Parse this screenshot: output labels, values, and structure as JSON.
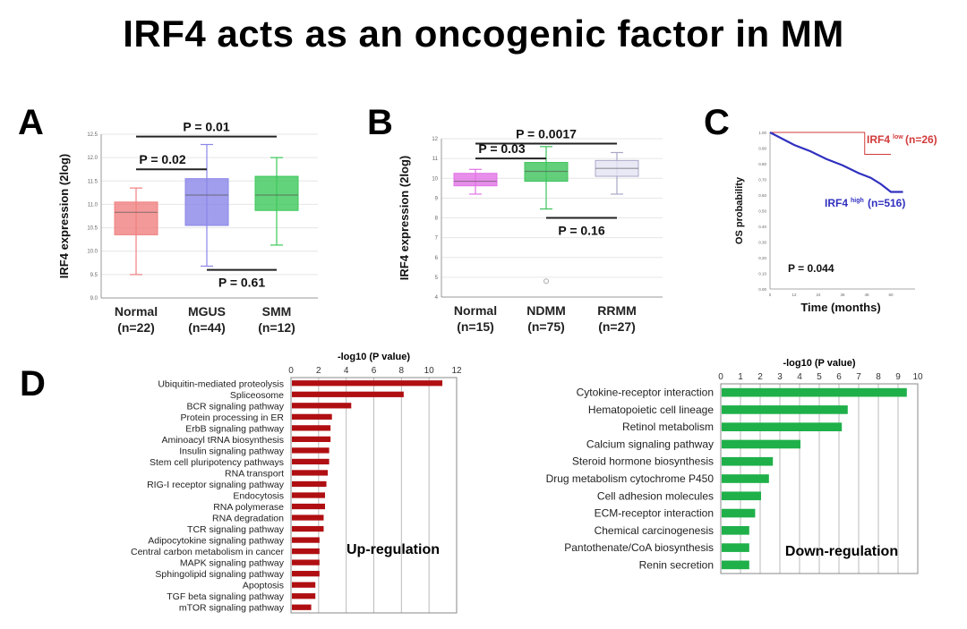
{
  "title": "IRF4 acts as an oncogenic factor in MM",
  "chart_data": [
    {
      "panel": "A",
      "type": "box",
      "ylabel": "IRF4 expression (2log)",
      "ylim": [
        9.0,
        12.5
      ],
      "yticks": [
        "9.0",
        "9.5",
        "10.0",
        "10.5",
        "11.0",
        "11.5",
        "12.0",
        "12.5"
      ],
      "categories": [
        "Normal",
        "MGUS",
        "SMM"
      ],
      "n_labels": [
        "(n=22)",
        "(n=44)",
        "(n=12)"
      ],
      "colors": [
        "#f08080",
        "#8a86e8",
        "#3cc85a"
      ],
      "stats": [
        {
          "min": 9.5,
          "q1": 10.35,
          "median": 10.83,
          "q3": 11.05,
          "max": 11.35
        },
        {
          "min": 9.68,
          "q1": 10.55,
          "median": 11.2,
          "q3": 11.55,
          "max": 12.28
        },
        {
          "min": 10.13,
          "q1": 10.87,
          "median": 11.2,
          "q3": 11.6,
          "max": 12.0
        }
      ],
      "comparisons": [
        {
          "from": 0,
          "to": 2,
          "y": 12.45,
          "label": "P = 0.01",
          "pos": "above"
        },
        {
          "from": 0,
          "to": 1,
          "y": 11.75,
          "label": "P = 0.02",
          "pos": "above"
        },
        {
          "from": 1,
          "to": 2,
          "y": 9.6,
          "label": "P = 0.61",
          "pos": "below"
        }
      ]
    },
    {
      "panel": "B",
      "type": "box",
      "ylabel": "IRF4 expression (2log)",
      "ylim": [
        4,
        12
      ],
      "yticks": [
        "4",
        "5",
        "6",
        "7",
        "8",
        "9",
        "10",
        "11",
        "12"
      ],
      "categories": [
        "Normal",
        "NDMM",
        "RRMM"
      ],
      "n_labels": [
        "(n=15)",
        "(n=75)",
        "(n=27)"
      ],
      "colors": [
        "#e272e6",
        "#3cc35a",
        "#e4e4f4"
      ],
      "stats": [
        {
          "min": 9.2,
          "q1": 9.62,
          "median": 9.85,
          "q3": 10.25,
          "max": 10.45
        },
        {
          "min": 8.45,
          "q1": 9.85,
          "median": 10.35,
          "q3": 10.8,
          "max": 11.6,
          "outliers": [
            4.8
          ]
        },
        {
          "min": 9.2,
          "q1": 10.1,
          "median": 10.5,
          "q3": 10.9,
          "max": 11.3
        }
      ],
      "comparisons": [
        {
          "from": 0,
          "to": 2,
          "y": 11.75,
          "label": "P = 0.0017",
          "pos": "above"
        },
        {
          "from": 0,
          "to": 1,
          "y": 11.0,
          "label": "P = 0.03",
          "pos": "above"
        },
        {
          "from": 1,
          "to": 2,
          "y": 8.0,
          "label": "P = 0.16",
          "pos": "below"
        }
      ]
    },
    {
      "panel": "C",
      "type": "line",
      "xlabel": "Time (months)",
      "ylabel": "OS probability",
      "ylim": [
        0,
        1
      ],
      "xlim": [
        0,
        72
      ],
      "yticks": [
        "0.00",
        "0.10",
        "0.20",
        "0.30",
        "0.40",
        "0.50",
        "0.60",
        "0.70",
        "0.80",
        "0.90",
        "1.00"
      ],
      "xticks": [
        "0",
        "12",
        "24",
        "36",
        "48",
        "60"
      ],
      "series": [
        {
          "name": "IRF4",
          "sup": "low",
          "n": "(n=26)",
          "color": "#d23a3a",
          "x": [
            0,
            47,
            47,
            60
          ],
          "y": [
            1.0,
            1.0,
            0.86,
            0.86
          ]
        },
        {
          "name": "IRF4",
          "sup": "high",
          "n": "(n=516)",
          "color": "#3030c0",
          "x": [
            0,
            6,
            12,
            20,
            28,
            36,
            44,
            50,
            55,
            58,
            60,
            66
          ],
          "y": [
            1.0,
            0.96,
            0.92,
            0.88,
            0.83,
            0.79,
            0.74,
            0.71,
            0.67,
            0.64,
            0.62,
            0.62
          ]
        }
      ],
      "annotation": "P = 0.044"
    },
    {
      "panel": "D",
      "type": "bar",
      "orientation": "horizontal",
      "xlabel": "-log10 (P value)",
      "xlim": [
        0,
        12
      ],
      "xticks": [
        "0",
        "2",
        "4",
        "6",
        "8",
        "10",
        "12"
      ],
      "color": "#b00f12",
      "annotation": "Up-regulation",
      "categories": [
        "Ubiquitin-mediated proteolysis",
        "Spliceosome",
        "BCR signaling pathway",
        "Protein processing in ER",
        "ErbB signaling pathway",
        "Aminoacyl tRNA  biosynthesis",
        "Insulin signaling pathway",
        "Stem cell pluripotency pathways",
        "RNA transport",
        "RIG-I receptor signaling pathway",
        "Endocytosis",
        "RNA polymerase",
        "RNA degradation",
        "TCR signaling pathway",
        "Adipocytokine signaling pathway",
        "Central carbon metabolism in cancer",
        "MAPK signaling pathway",
        "Sphingolipid signaling pathway",
        "Apoptosis",
        "TGF beta signaling pathway",
        "mTOR signaling pathway"
      ],
      "values": [
        10.9,
        8.1,
        4.3,
        2.9,
        2.8,
        2.8,
        2.7,
        2.7,
        2.6,
        2.5,
        2.4,
        2.4,
        2.3,
        2.3,
        2.0,
        2.0,
        2.0,
        2.0,
        1.7,
        1.7,
        1.4
      ]
    },
    {
      "panel": "D",
      "type": "bar",
      "orientation": "horizontal",
      "xlabel": "-log10 (P value)",
      "xlim": [
        0,
        10
      ],
      "xticks": [
        "0",
        "1",
        "2",
        "3",
        "4",
        "5",
        "6",
        "7",
        "8",
        "9",
        "10"
      ],
      "color": "#1fb04a",
      "annotation": "Down-regulation",
      "categories": [
        "Cytokine-receptor interaction",
        "Hematopoietic cell lineage",
        "Retinol metabolism",
        "Calcium signaling pathway",
        "Steroid hormone biosynthesis",
        "Drug metabolism cytochrome P450",
        "Cell adhesion molecules",
        "ECM-receptor interaction",
        "Chemical carcinogenesis",
        "Pantothenate/CoA biosynthesis",
        "Renin secretion"
      ],
      "values": [
        9.4,
        6.4,
        6.1,
        4.0,
        2.6,
        2.4,
        2.0,
        1.7,
        1.4,
        1.4,
        1.4
      ]
    }
  ],
  "panel_labels": [
    "A",
    "B",
    "C",
    "D"
  ]
}
